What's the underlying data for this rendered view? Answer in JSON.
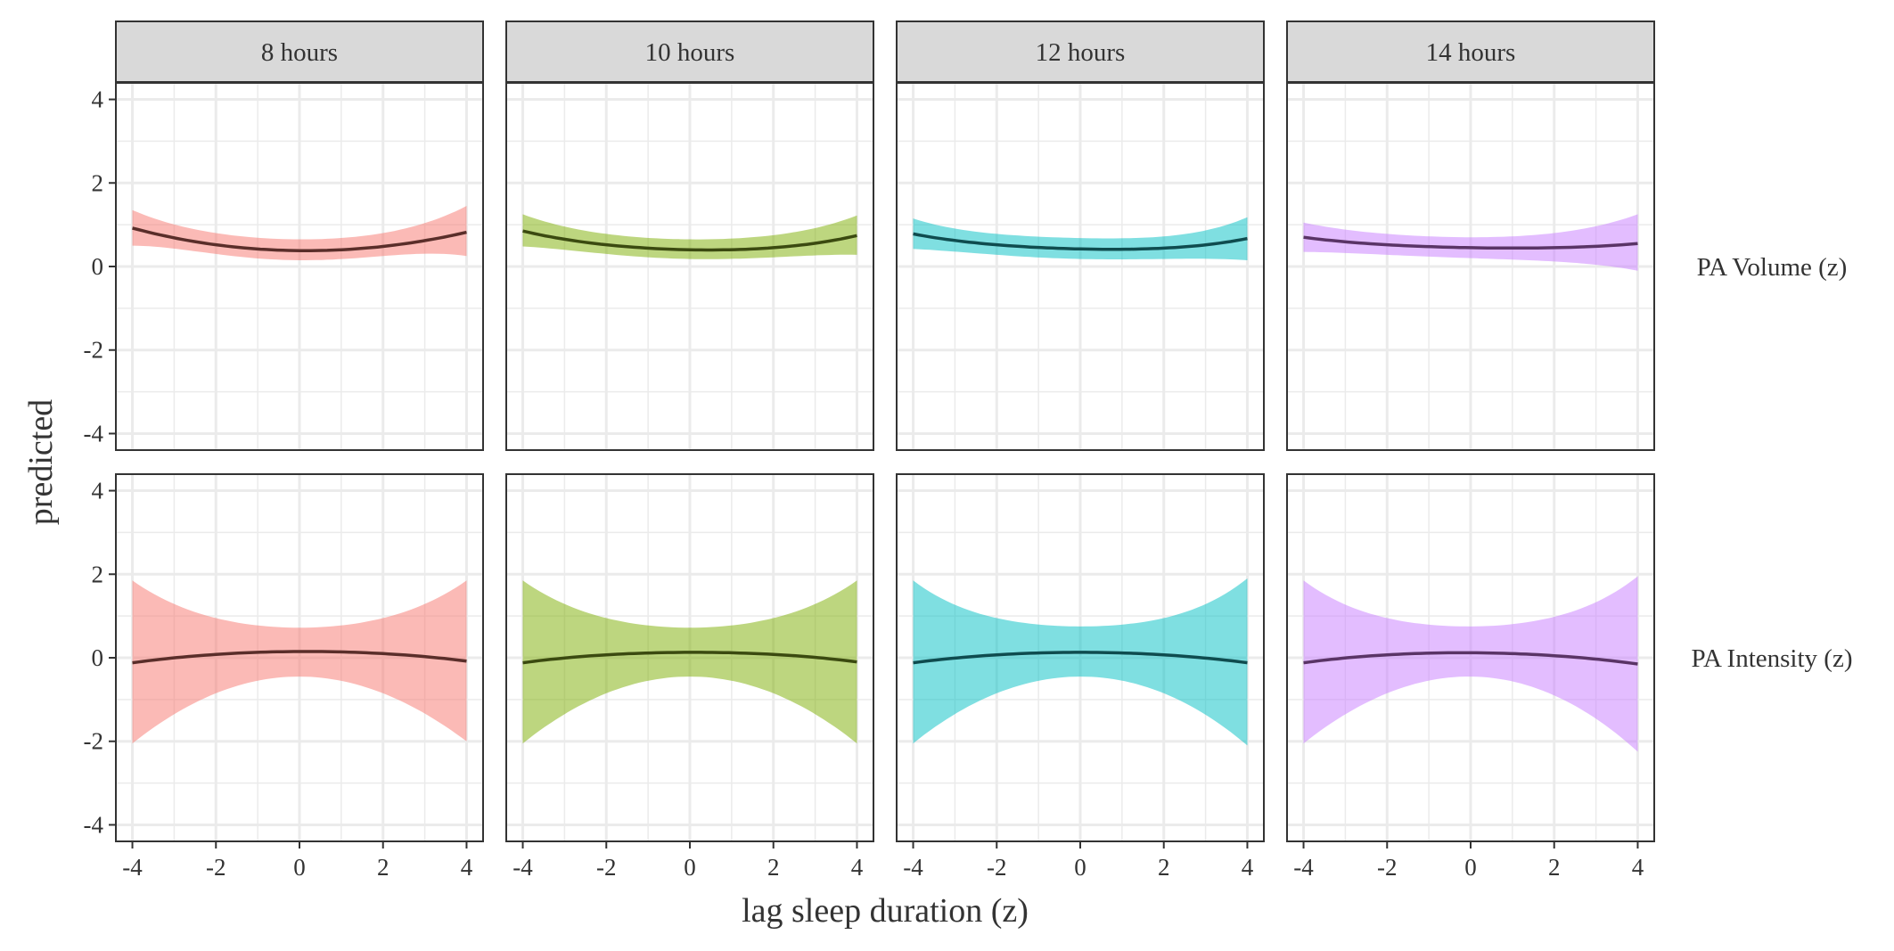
{
  "chart_data": {
    "type": "line",
    "facets": {
      "columns": [
        "8 hours",
        "10 hours",
        "12 hours",
        "14 hours"
      ],
      "rows": [
        "PA Volume (z)",
        "PA Intensity (z)"
      ]
    },
    "xlabel": "lag sleep duration (z)",
    "ylabel": "predicted",
    "xlim": [
      -4,
      4
    ],
    "ylim": [
      -4,
      4
    ],
    "xticks": [
      -4,
      -2,
      0,
      2,
      4
    ],
    "yticks": [
      -4,
      -2,
      0,
      2,
      4
    ],
    "x_tick_labels": [
      "-4",
      "-2",
      "0",
      "2",
      "4"
    ],
    "y_tick_labels": [
      "-4",
      "-2",
      "0",
      "2",
      "4"
    ],
    "grid": true,
    "colors": {
      "fills": [
        "#F8766D",
        "#7CAE00",
        "#00BFC4",
        "#C77CFF"
      ],
      "lines": [
        "#5a2e2a",
        "#3b4a10",
        "#0f4c4f",
        "#5a3466"
      ],
      "strip_bg": "#d9d9d9",
      "grid": "#ebebeb",
      "panel_border": "#333333"
    },
    "panels": [
      {
        "row": 0,
        "col": 0,
        "x": [
          -4,
          -2,
          0,
          2,
          4
        ],
        "fit": [
          0.92,
          0.52,
          0.38,
          0.48,
          0.82
        ],
        "lower": [
          0.5,
          0.3,
          0.15,
          0.25,
          0.25
        ],
        "upper": [
          1.35,
          0.8,
          0.65,
          0.8,
          1.45
        ]
      },
      {
        "row": 0,
        "col": 1,
        "x": [
          -4,
          -2,
          0,
          2,
          4
        ],
        "fit": [
          0.85,
          0.52,
          0.4,
          0.45,
          0.74
        ],
        "lower": [
          0.48,
          0.3,
          0.18,
          0.22,
          0.28
        ],
        "upper": [
          1.25,
          0.78,
          0.65,
          0.75,
          1.22
        ]
      },
      {
        "row": 0,
        "col": 2,
        "x": [
          -4,
          -2,
          0,
          2,
          4
        ],
        "fit": [
          0.78,
          0.52,
          0.42,
          0.44,
          0.67
        ],
        "lower": [
          0.42,
          0.28,
          0.18,
          0.18,
          0.15
        ],
        "upper": [
          1.15,
          0.78,
          0.68,
          0.72,
          1.18
        ]
      },
      {
        "row": 0,
        "col": 3,
        "x": [
          -4,
          -2,
          0,
          2,
          4
        ],
        "fit": [
          0.7,
          0.52,
          0.45,
          0.45,
          0.55
        ],
        "lower": [
          0.35,
          0.28,
          0.2,
          0.12,
          -0.1
        ],
        "upper": [
          1.05,
          0.78,
          0.7,
          0.8,
          1.25
        ]
      },
      {
        "row": 1,
        "col": 0,
        "x": [
          -4,
          -2,
          0,
          2,
          4
        ],
        "fit": [
          -0.12,
          0.08,
          0.15,
          0.1,
          -0.08
        ],
        "lower": [
          -2.05,
          -0.85,
          -0.45,
          -0.85,
          -2.0
        ],
        "upper": [
          1.85,
          0.95,
          0.72,
          0.95,
          1.85
        ]
      },
      {
        "row": 1,
        "col": 1,
        "x": [
          -4,
          -2,
          0,
          2,
          4
        ],
        "fit": [
          -0.12,
          0.07,
          0.13,
          0.08,
          -0.1
        ],
        "lower": [
          -2.05,
          -0.85,
          -0.45,
          -0.85,
          -2.05
        ],
        "upper": [
          1.85,
          0.95,
          0.72,
          0.95,
          1.85
        ]
      },
      {
        "row": 1,
        "col": 2,
        "x": [
          -4,
          -2,
          0,
          2,
          4
        ],
        "fit": [
          -0.12,
          0.07,
          0.13,
          0.07,
          -0.12
        ],
        "lower": [
          -2.05,
          -0.85,
          -0.45,
          -0.85,
          -2.1
        ],
        "upper": [
          1.85,
          0.95,
          0.75,
          0.95,
          1.9
        ]
      },
      {
        "row": 1,
        "col": 3,
        "x": [
          -4,
          -2,
          0,
          2,
          4
        ],
        "fit": [
          -0.12,
          0.07,
          0.12,
          0.05,
          -0.15
        ],
        "lower": [
          -2.05,
          -0.85,
          -0.45,
          -0.9,
          -2.25
        ],
        "upper": [
          1.85,
          0.95,
          0.75,
          0.98,
          1.95
        ]
      }
    ]
  }
}
